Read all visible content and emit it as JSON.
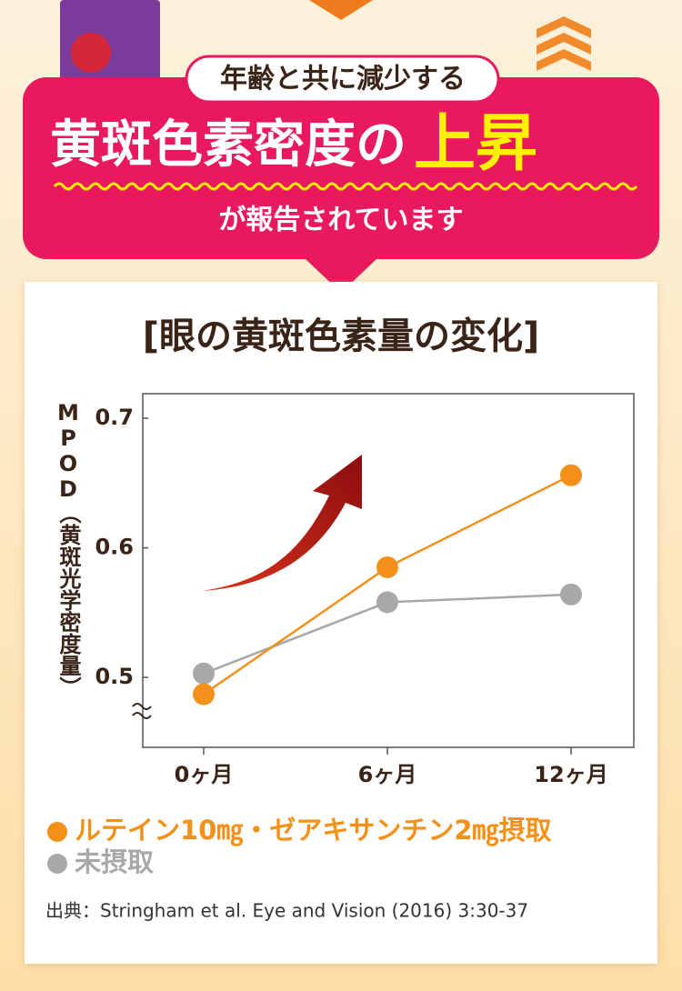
{
  "banner": {
    "tag": "年齢と共に減少する",
    "headline": "黄斑色素密度の",
    "highlight": "上昇",
    "subline": "が報告されています"
  },
  "chart_data": {
    "type": "line",
    "title": "[眼の黄斑色素量の変化]",
    "y_label": "MPOD（黄斑光学密度量）",
    "categories": [
      "0ヶ月",
      "6ヶ月",
      "12ヶ月"
    ],
    "series": [
      {
        "name": "ルテイン10㎎・ゼアキサンチン2㎎摂取",
        "color": "#f39019",
        "values": [
          0.487,
          0.585,
          0.656
        ]
      },
      {
        "name": "未摂取",
        "color": "#a8a8a8",
        "values": [
          0.503,
          0.558,
          0.564
        ]
      }
    ],
    "ylim": [
      0.446,
      0.719
    ],
    "yticks": [
      0.5,
      0.6,
      0.7
    ],
    "source": "出典：Stringham et al. Eye and Vision (2016) 3:30-37"
  }
}
